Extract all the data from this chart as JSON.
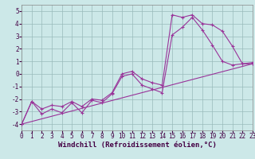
{
  "xlabel": "Windchill (Refroidissement éolien,°C)",
  "bg_color": "#cce8e8",
  "grid_color": "#99bbbb",
  "line_color": "#993399",
  "xlim": [
    0,
    23
  ],
  "ylim": [
    -4.5,
    5.5
  ],
  "xticks": [
    0,
    1,
    2,
    3,
    4,
    5,
    6,
    7,
    8,
    9,
    10,
    11,
    12,
    13,
    14,
    15,
    16,
    17,
    18,
    19,
    20,
    21,
    22,
    23
  ],
  "yticks": [
    -4,
    -3,
    -2,
    -1,
    0,
    1,
    2,
    3,
    4,
    5
  ],
  "line1_x": [
    0,
    1,
    2,
    3,
    4,
    5,
    6,
    7,
    8,
    9,
    10,
    11,
    12,
    13,
    14,
    15,
    16,
    17,
    18,
    19,
    20,
    21,
    22,
    23
  ],
  "line1_y": [
    -4.0,
    -2.2,
    -3.2,
    -2.8,
    -3.1,
    -2.3,
    -3.1,
    -2.1,
    -2.3,
    -1.6,
    -0.2,
    0.0,
    -0.9,
    -1.2,
    -1.5,
    3.1,
    3.7,
    4.5,
    3.5,
    2.3,
    1.0,
    0.7,
    0.8,
    0.9
  ],
  "line2_x": [
    0,
    1,
    2,
    3,
    4,
    5,
    6,
    7,
    8,
    9,
    10,
    11,
    12,
    13,
    14,
    15,
    16,
    17,
    18,
    19,
    20,
    21,
    22,
    23
  ],
  "line2_y": [
    -4.0,
    -2.2,
    -2.8,
    -2.5,
    -2.6,
    -2.2,
    -2.6,
    -2.0,
    -2.1,
    -1.5,
    0.0,
    0.2,
    -0.4,
    -0.7,
    -0.9,
    4.7,
    4.5,
    4.7,
    4.0,
    3.9,
    3.4,
    2.2,
    0.8,
    0.8
  ],
  "line3_x": [
    0,
    23
  ],
  "line3_y": [
    -4.0,
    0.8
  ],
  "xlabel_fontsize": 6.5,
  "tick_fontsize": 5.5
}
